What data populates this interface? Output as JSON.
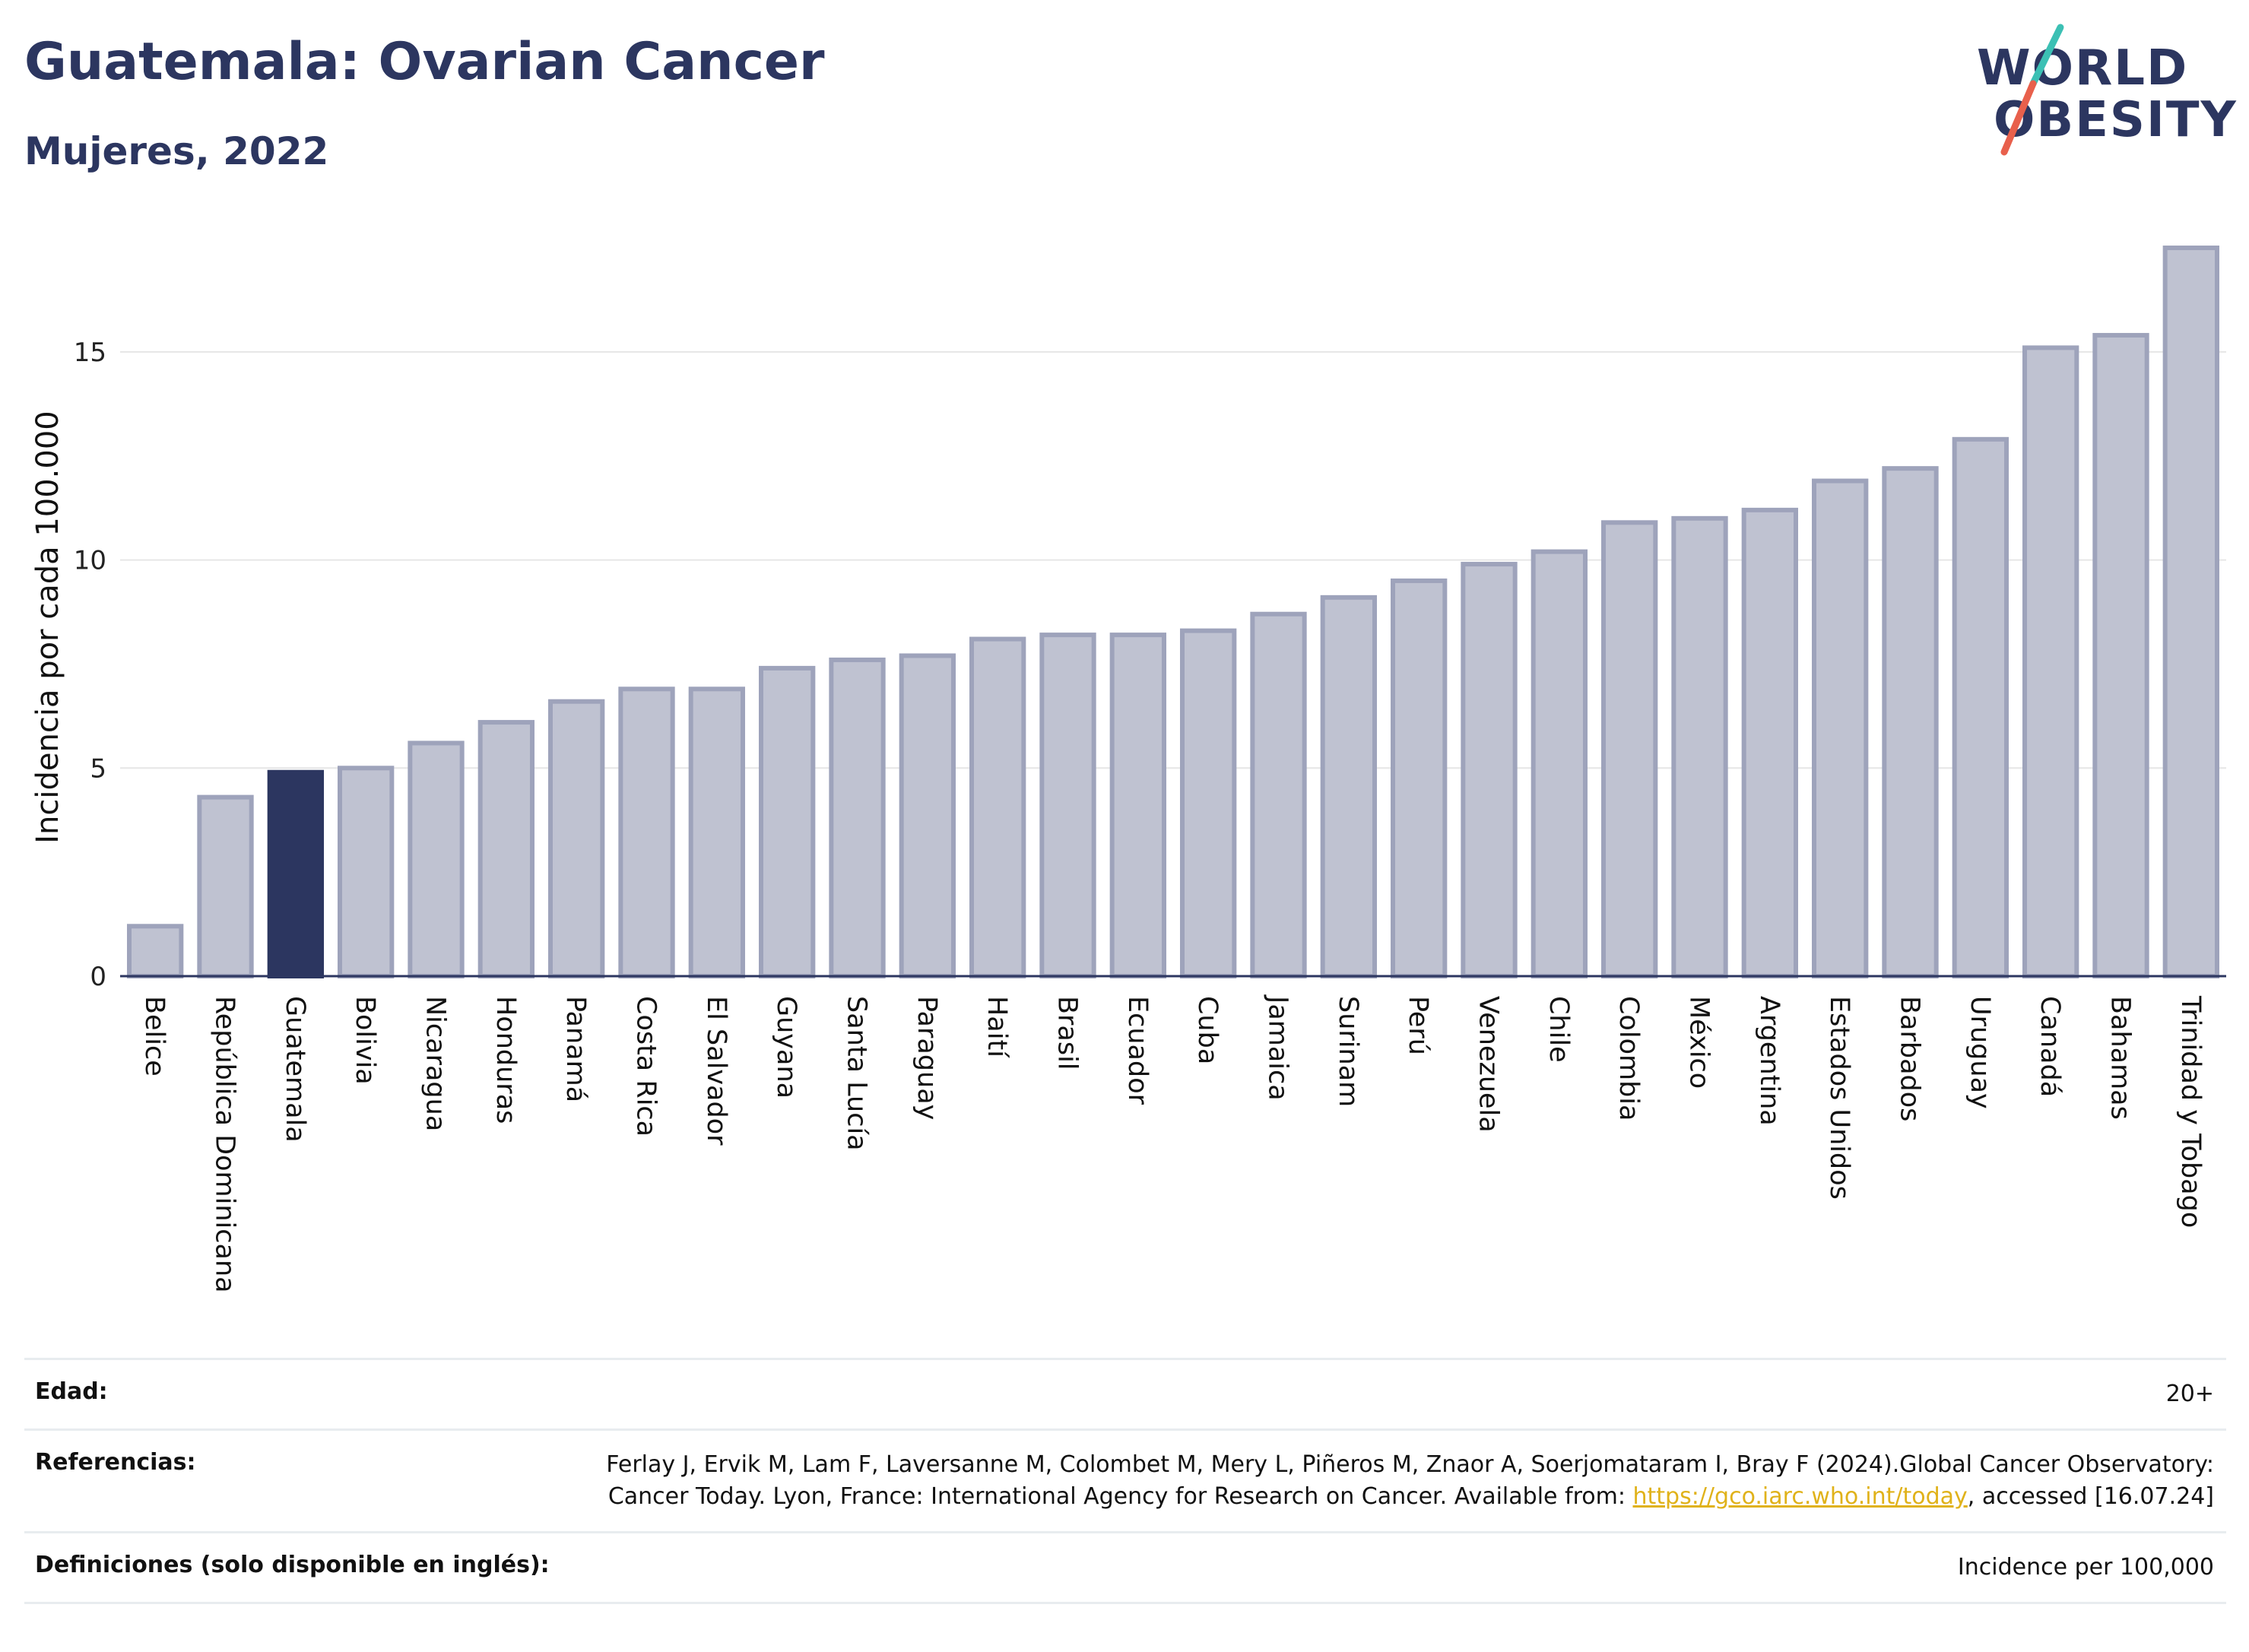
{
  "header": {
    "title": "Guatemala: Ovarian Cancer",
    "subtitle": "Mujeres, 2022"
  },
  "logo": {
    "line1": "WORLD",
    "line2": "OBESITY",
    "accent_teal": "#3cc0b4",
    "accent_red": "#e8604c"
  },
  "colors": {
    "bar_fill": "#bfc2d1",
    "bar_stroke": "#9ea3bb",
    "highlight": "#2c3660",
    "grid": "#e6e6e6",
    "axis": "#2c3660"
  },
  "chart_data": {
    "type": "bar",
    "ylabel": "Incidencia por cada 100.000",
    "ylim": [
      0,
      17.5
    ],
    "yticks": [
      0,
      5,
      10,
      15
    ],
    "grid": true,
    "highlight": "Guatemala",
    "categories": [
      "Belice",
      "República Dominicana",
      "Guatemala",
      "Bolivia",
      "Nicaragua",
      "Honduras",
      "Panamá",
      "Costa Rica",
      "El Salvador",
      "Guyana",
      "Santa Lucía",
      "Paraguay",
      "Haití",
      "Brasil",
      "Ecuador",
      "Cuba",
      "Jamaica",
      "Surinam",
      "Perú",
      "Venezuela",
      "Chile",
      "Colombia",
      "México",
      "Argentina",
      "Estados Unidos",
      "Barbados",
      "Uruguay",
      "Canadá",
      "Bahamas",
      "Trinidad y Tobago"
    ],
    "values": [
      1.2,
      4.3,
      4.9,
      5.0,
      5.6,
      6.1,
      6.6,
      6.9,
      6.9,
      7.4,
      7.6,
      7.7,
      8.1,
      8.2,
      8.2,
      8.3,
      8.7,
      9.1,
      9.5,
      9.9,
      10.2,
      10.9,
      11.0,
      11.2,
      11.9,
      12.2,
      12.9,
      15.1,
      15.4,
      17.5
    ]
  },
  "footer": {
    "age_label": "Edad:",
    "age_value": "20+",
    "refs_label": "Referencias:",
    "refs_text": "Ferlay J, Ervik M, Lam F, Laversanne M, Colombet M, Mery L, Piñeros M, Znaor A, Soerjomataram I, Bray F (2024).Global Cancer Observatory: Cancer Today. Lyon, France: International Agency for Research on Cancer. Available from:",
    "refs_link": "https://gco.iarc.who.int/today",
    "refs_after": ", accessed [16.07.24]",
    "defs_label": "Definiciones (solo disponible en inglés):",
    "defs_value": "Incidence per 100,000"
  }
}
